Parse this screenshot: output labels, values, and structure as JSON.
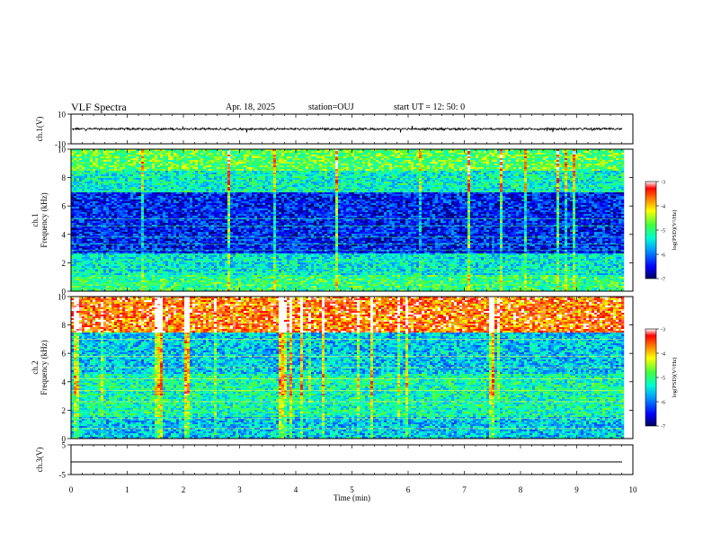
{
  "header": {
    "title": "VLF Spectra",
    "date": "Apr. 18, 2025",
    "station": "station=OUJ",
    "start_ut": "start UT =  12: 50: 0"
  },
  "colors": {
    "waveform": "#000000",
    "colormap": [
      "#000060",
      "#0000ff",
      "#00a0ff",
      "#00ffd0",
      "#40ff40",
      "#ffff00",
      "#ff8000",
      "#ff0000",
      "#ffffff"
    ]
  },
  "chart_data": [
    {
      "type": "line",
      "panel": "waveform-ch1",
      "ylabel": "ch.1(V)",
      "ylim": [
        -10,
        10
      ],
      "yticks": [
        "10",
        "-10"
      ],
      "xlim": [
        0,
        10
      ],
      "description_series": "broadband waveform near 0 V with sparse spikes",
      "series": [
        {
          "values_range": [
            -1.5,
            1.5
          ]
        }
      ]
    },
    {
      "type": "heatmap",
      "panel": "spectrogram-ch1",
      "ylabel": "ch.1\nFrequency (kHz)",
      "ylim": [
        0,
        10
      ],
      "yticks": [
        "0",
        "2",
        "4",
        "6",
        "8",
        "10"
      ],
      "xlim": [
        0,
        9.8
      ],
      "colorbar": {
        "label": "log(PSD)(V²/Hz)",
        "range": [
          -7,
          -3
        ],
        "ticks": [
          "-3",
          "-4",
          "-5",
          "-6",
          "-7"
        ]
      },
      "bands": [
        {
          "f": [
            0,
            1.2
          ],
          "level": -5.0
        },
        {
          "f": [
            1.2,
            2.6
          ],
          "level": -5.4
        },
        {
          "f": [
            2.6,
            7.0
          ],
          "level": -6.4
        },
        {
          "f": [
            7.0,
            8.5
          ],
          "level": -5.3
        },
        {
          "f": [
            8.5,
            10
          ],
          "level": -4.8
        }
      ]
    },
    {
      "type": "heatmap",
      "panel": "spectrogram-ch2",
      "ylabel": "ch.2\nFrequency (kHz)",
      "ylim": [
        0,
        10
      ],
      "yticks": [
        "0",
        "2",
        "4",
        "6",
        "8",
        "10"
      ],
      "xlim": [
        0,
        9.8
      ],
      "colorbar": {
        "label": "log(PSD)(V²/Hz)",
        "range": [
          -7,
          -3
        ],
        "ticks": [
          "-3",
          "-4",
          "-5",
          "-6",
          "-7"
        ]
      },
      "bands": [
        {
          "f": [
            0,
            1.5
          ],
          "level": -5.6
        },
        {
          "f": [
            1.5,
            4.5
          ],
          "level": -5.2
        },
        {
          "f": [
            4.5,
            7.5
          ],
          "level": -5.6
        },
        {
          "f": [
            7.5,
            10
          ],
          "level": -4.0
        }
      ]
    },
    {
      "type": "line",
      "panel": "waveform-ch3",
      "ylabel": "ch.3(V)",
      "ylim": [
        -5,
        5
      ],
      "yticks": [
        "5",
        "-5"
      ],
      "xlim": [
        0,
        10
      ],
      "series": [
        {
          "values_range": [
            -0.9,
            -0.6
          ]
        }
      ]
    }
  ],
  "xaxis": {
    "label": "Time (min)",
    "ticks": [
      "0",
      "1",
      "2",
      "3",
      "4",
      "5",
      "6",
      "7",
      "8",
      "9",
      "10"
    ]
  }
}
